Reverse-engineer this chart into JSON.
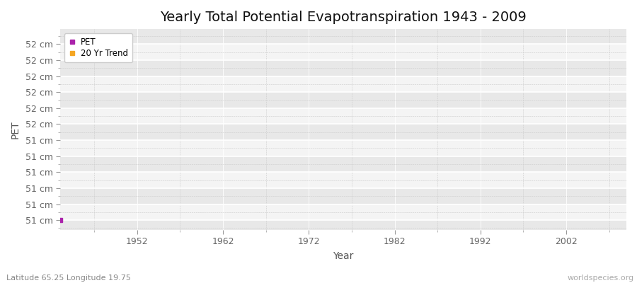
{
  "title": "Yearly Total Potential Evapotranspiration 1943 - 2009",
  "xlabel": "Year",
  "ylabel": "PET",
  "xlim": [
    1943,
    2009
  ],
  "ylim": [
    50.72,
    52.32
  ],
  "xticks": [
    1952,
    1962,
    1972,
    1982,
    1992,
    2002
  ],
  "pet_x": [
    1943
  ],
  "pet_y": [
    50.8
  ],
  "pet_color": "#aa22aa",
  "trend_color": "#f5a623",
  "background_color": "#e8e8e8",
  "grid_major_color": "#ffffff",
  "grid_minor_color": "#cccccc",
  "subtitle_text": "Latitude 65.25 Longitude 19.75",
  "watermark": "worldspecies.org",
  "legend_pet": "PET",
  "legend_trend": "20 Yr Trend",
  "title_fontsize": 14,
  "axis_label_fontsize": 10,
  "tick_fontsize": 9,
  "n_yticks": 12,
  "ymin_val": 50.8,
  "ymax_val": 52.2
}
